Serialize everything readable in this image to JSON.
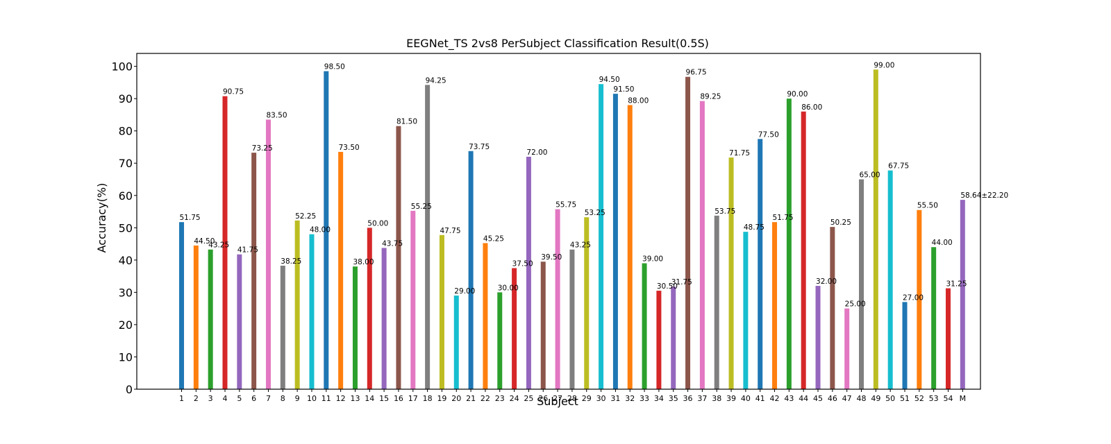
{
  "chart_data": {
    "type": "bar",
    "title": "EEGNet_TS 2vs8 PerSubject Classification Result(0.5S)",
    "xlabel": "Subject",
    "ylabel": "Accuracy(%)",
    "ylim": [
      0,
      104
    ],
    "yticks": [
      0,
      10,
      20,
      30,
      40,
      50,
      60,
      70,
      80,
      90,
      100
    ],
    "grid": false,
    "categories": [
      "1",
      "2",
      "3",
      "4",
      "5",
      "6",
      "7",
      "8",
      "9",
      "10",
      "11",
      "12",
      "13",
      "14",
      "15",
      "16",
      "17",
      "18",
      "19",
      "20",
      "21",
      "22",
      "23",
      "24",
      "25",
      "26",
      "27",
      "28",
      "29",
      "30",
      "31",
      "32",
      "33",
      "34",
      "35",
      "36",
      "37",
      "38",
      "39",
      "40",
      "41",
      "42",
      "43",
      "44",
      "45",
      "46",
      "47",
      "48",
      "49",
      "50",
      "51",
      "52",
      "53",
      "54",
      "M"
    ],
    "values": [
      51.75,
      44.5,
      43.25,
      90.75,
      41.75,
      73.25,
      83.5,
      38.25,
      52.25,
      48.0,
      98.5,
      73.5,
      38.0,
      50.0,
      43.75,
      81.5,
      55.25,
      94.25,
      47.75,
      29.0,
      73.75,
      45.25,
      30.0,
      37.5,
      72.0,
      39.5,
      55.75,
      43.25,
      53.25,
      94.5,
      91.5,
      88.0,
      39.0,
      30.5,
      31.75,
      96.75,
      89.25,
      53.75,
      71.75,
      48.75,
      77.5,
      51.75,
      90.0,
      86.0,
      32.0,
      50.25,
      25.0,
      65.0,
      99.0,
      67.75,
      27.0,
      55.5,
      44.0,
      31.25,
      58.64
    ],
    "labels": [
      "51.75",
      "44.50",
      "43.25",
      "90.75",
      "41.75",
      "73.25",
      "83.50",
      "38.25",
      "52.25",
      "48.00",
      "98.50",
      "73.50",
      "38.00",
      "50.00",
      "43.75",
      "81.50",
      "55.25",
      "94.25",
      "47.75",
      "29.00",
      "73.75",
      "45.25",
      "30.00",
      "37.50",
      "72.00",
      "39.50",
      "55.75",
      "43.25",
      "53.25",
      "94.50",
      "91.50",
      "88.00",
      "39.00",
      "30.50",
      "31.75",
      "96.75",
      "89.25",
      "53.75",
      "71.75",
      "48.75",
      "77.50",
      "51.75",
      "90.00",
      "86.00",
      "32.00",
      "50.25",
      "25.00",
      "65.00",
      "99.00",
      "67.75",
      "27.00",
      "55.50",
      "44.00",
      "31.25",
      "58.64±22.20"
    ],
    "mean_label_color": "#ff0000",
    "colors": [
      "#1f77b4",
      "#ff7f0e",
      "#2ca02c",
      "#d62728",
      "#9467bd",
      "#8c564b",
      "#e377c2",
      "#7f7f7f",
      "#bcbd22",
      "#17becf"
    ]
  }
}
